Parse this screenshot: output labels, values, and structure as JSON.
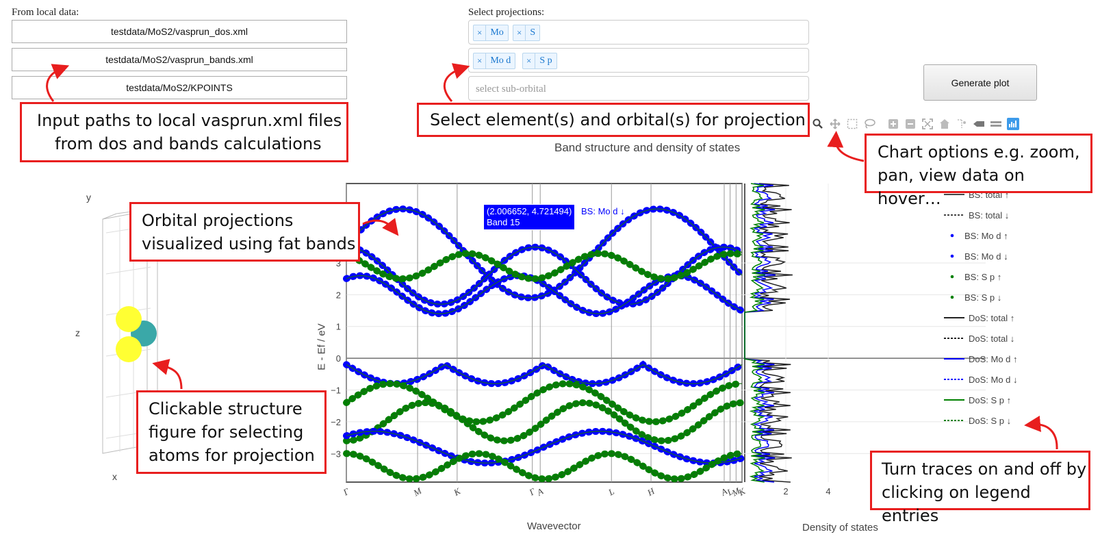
{
  "local_data": {
    "label": "From local data:",
    "inputs": [
      {
        "value": "testdata/MoS2/vasprun_dos.xml"
      },
      {
        "value": "testdata/MoS2/vasprun_bands.xml"
      },
      {
        "value": "testdata/MoS2/KPOINTS"
      }
    ]
  },
  "projections": {
    "label": "Select projections:",
    "elements": [
      "Mo",
      "S"
    ],
    "orbitals": [
      "Mo d",
      "S p"
    ],
    "remove_symbol": "×",
    "sub_orbital_placeholder": "select sub-orbital"
  },
  "generate_button": "Generate plot",
  "modebar_icons": [
    "zoom-icon",
    "pan-icon",
    "box-select-icon",
    "lasso-select-icon",
    "zoom-in-icon",
    "zoom-out-icon",
    "autoscale-icon",
    "reset-axes-icon",
    "spike-lines-icon",
    "hover-closest-icon",
    "hover-compare-icon",
    "plotly-logo-icon"
  ],
  "callouts": {
    "input_paths": [
      "Input paths to local vasprun.xml files",
      "from dos and bands calculations"
    ],
    "select_projection": "Select element(s) and orbital(s) for projection",
    "chart_options": [
      "Chart options e.g. zoom,",
      "pan, view data on hover…"
    ],
    "orbital_projections": [
      "Orbital projections",
      "visualized using fat bands"
    ],
    "structure": [
      "Clickable structure",
      "figure for selecting",
      "atoms for projection"
    ],
    "legend_toggle": [
      "Turn traces on and off by",
      "clicking on legend entries"
    ]
  },
  "structure": {
    "axis_y": "y",
    "axis_z": "z",
    "axis_x": "x",
    "atom_colors": {
      "S": "#ffff33",
      "Mo": "#3aa8a8"
    }
  },
  "colors": {
    "bs_total": "#444444",
    "mo_d": "#0000ff",
    "s_p": "#008000",
    "dos_total": "#222222",
    "callout_border": "#e81e1e"
  },
  "chart_data": {
    "type": "line",
    "title": "Band structure and density of states",
    "ylabel": "E - Ef / eV",
    "xlabel_bands": "Wavevector",
    "xlabel_dos": "Density of states",
    "ylim": [
      -3.9,
      5.5
    ],
    "yticks": [
      "−3",
      "−2",
      "−1",
      "0",
      "1",
      "2",
      "3"
    ],
    "kpoints": [
      "Γ",
      "M",
      "K",
      "Γ",
      "A",
      "L",
      "H",
      "A",
      "L",
      "M",
      "K"
    ],
    "dos_ticks": [
      "2",
      "4"
    ],
    "hover": {
      "point": "(2.006652, 4.721494)",
      "trace": "BS: Mo d ↓",
      "band": "Band 15"
    },
    "legend": [
      {
        "name": "BS: total ↑",
        "style": "solid",
        "color": "#444444"
      },
      {
        "name": "BS: total ↓",
        "style": "dotted",
        "color": "#444444"
      },
      {
        "name": "BS: Mo d ↑",
        "style": "dot",
        "color": "#0000ff"
      },
      {
        "name": "BS: Mo d ↓",
        "style": "dot",
        "color": "#0000ff"
      },
      {
        "name": "BS: S p ↑",
        "style": "dot",
        "color": "#008000"
      },
      {
        "name": "BS: S p ↓",
        "style": "dot",
        "color": "#008000"
      },
      {
        "name": "DoS: total ↑",
        "style": "solid",
        "color": "#222222"
      },
      {
        "name": "DoS: total ↓",
        "style": "dotted",
        "color": "#222222"
      },
      {
        "name": "DoS: Mo d ↑",
        "style": "solid",
        "color": "#0000ff"
      },
      {
        "name": "DoS: Mo d ↓",
        "style": "dotted",
        "color": "#0000ff"
      },
      {
        "name": "DoS: S p ↑",
        "style": "solid",
        "color": "#008000"
      },
      {
        "name": "DoS: S p ↓",
        "style": "dotted",
        "color": "#008000"
      }
    ]
  }
}
